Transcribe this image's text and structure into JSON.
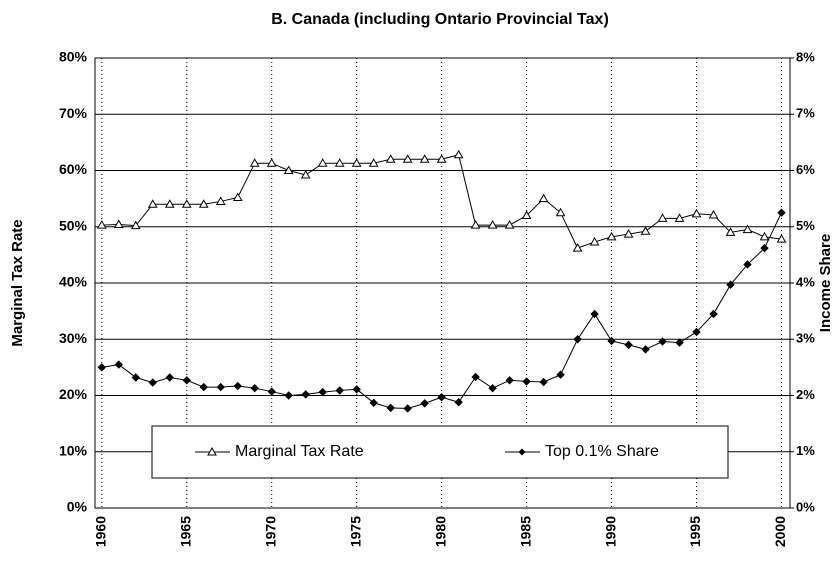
{
  "chart_data": {
    "type": "line",
    "title": "B. Canada (including Ontario Provincial Tax)",
    "y_label": "Marginal Tax Rate",
    "y2_label": "Income Share",
    "x": [
      1960,
      1961,
      1962,
      1963,
      1964,
      1965,
      1966,
      1967,
      1968,
      1969,
      1970,
      1971,
      1972,
      1973,
      1974,
      1975,
      1976,
      1977,
      1978,
      1979,
      1980,
      1981,
      1982,
      1983,
      1984,
      1985,
      1986,
      1987,
      1988,
      1989,
      1990,
      1991,
      1992,
      1993,
      1994,
      1995,
      1996,
      1997,
      1998,
      1999,
      2000
    ],
    "series": [
      {
        "name": "Marginal Tax Rate",
        "color": "#000000",
        "marker": "triangle",
        "values": [
          50.3,
          50.4,
          50.2,
          54,
          54,
          54,
          54,
          54.5,
          55.2,
          61.3,
          61.3,
          60,
          59.2,
          61.3,
          61.3,
          61.3,
          61.3,
          62,
          62,
          62,
          62,
          62.8,
          50.3,
          50.3,
          50.3,
          52,
          55,
          52.5,
          46.2,
          47.3,
          48.2,
          48.7,
          49.2,
          51.5,
          51.5,
          52.3,
          52.1,
          49,
          49.5,
          48.2,
          47.8
        ]
      },
      {
        "name": "Top 0.1% Share",
        "color": "#000000",
        "marker": "diamond",
        "axis": "y2",
        "values": [
          2.5,
          2.55,
          2.32,
          2.23,
          2.32,
          2.27,
          2.15,
          2.15,
          2.17,
          2.13,
          2.07,
          2.0,
          2.02,
          2.06,
          2.09,
          2.11,
          1.87,
          1.78,
          1.77,
          1.86,
          1.97,
          1.88,
          2.33,
          2.13,
          2.27,
          2.25,
          2.24,
          2.37,
          3.0,
          3.45,
          2.97,
          2.9,
          2.82,
          2.96,
          2.94,
          3.13,
          3.45,
          3.97,
          4.33,
          4.62,
          5.25
        ]
      }
    ],
    "xlim": [
      1959.6,
      2000.5
    ],
    "xticks": [
      1960,
      1965,
      1970,
      1975,
      1980,
      1985,
      1990,
      1995,
      2000
    ],
    "ylim": [
      0,
      80
    ],
    "yticks": [
      {
        "value": 0,
        "label": "0%"
      },
      {
        "value": 10,
        "label": "10%"
      },
      {
        "value": 20,
        "label": "20%"
      },
      {
        "value": 30,
        "label": "30%"
      },
      {
        "value": 40,
        "label": "40%"
      },
      {
        "value": 50,
        "label": "50%"
      },
      {
        "value": 60,
        "label": "60%"
      },
      {
        "value": 70,
        "label": "70%"
      },
      {
        "value": 80,
        "label": "80%"
      }
    ],
    "y2lim": [
      0,
      8
    ],
    "y2ticks": [
      {
        "value": 0,
        "label": "0%"
      },
      {
        "value": 1,
        "label": "1%"
      },
      {
        "value": 2,
        "label": "2%"
      },
      {
        "value": 3,
        "label": "3%"
      },
      {
        "value": 4,
        "label": "4%"
      },
      {
        "value": 5,
        "label": "5%"
      },
      {
        "value": 6,
        "label": "6%"
      },
      {
        "value": 7,
        "label": "7%"
      },
      {
        "value": 8,
        "label": "8%"
      }
    ],
    "grid": true,
    "legend": "bottom"
  }
}
